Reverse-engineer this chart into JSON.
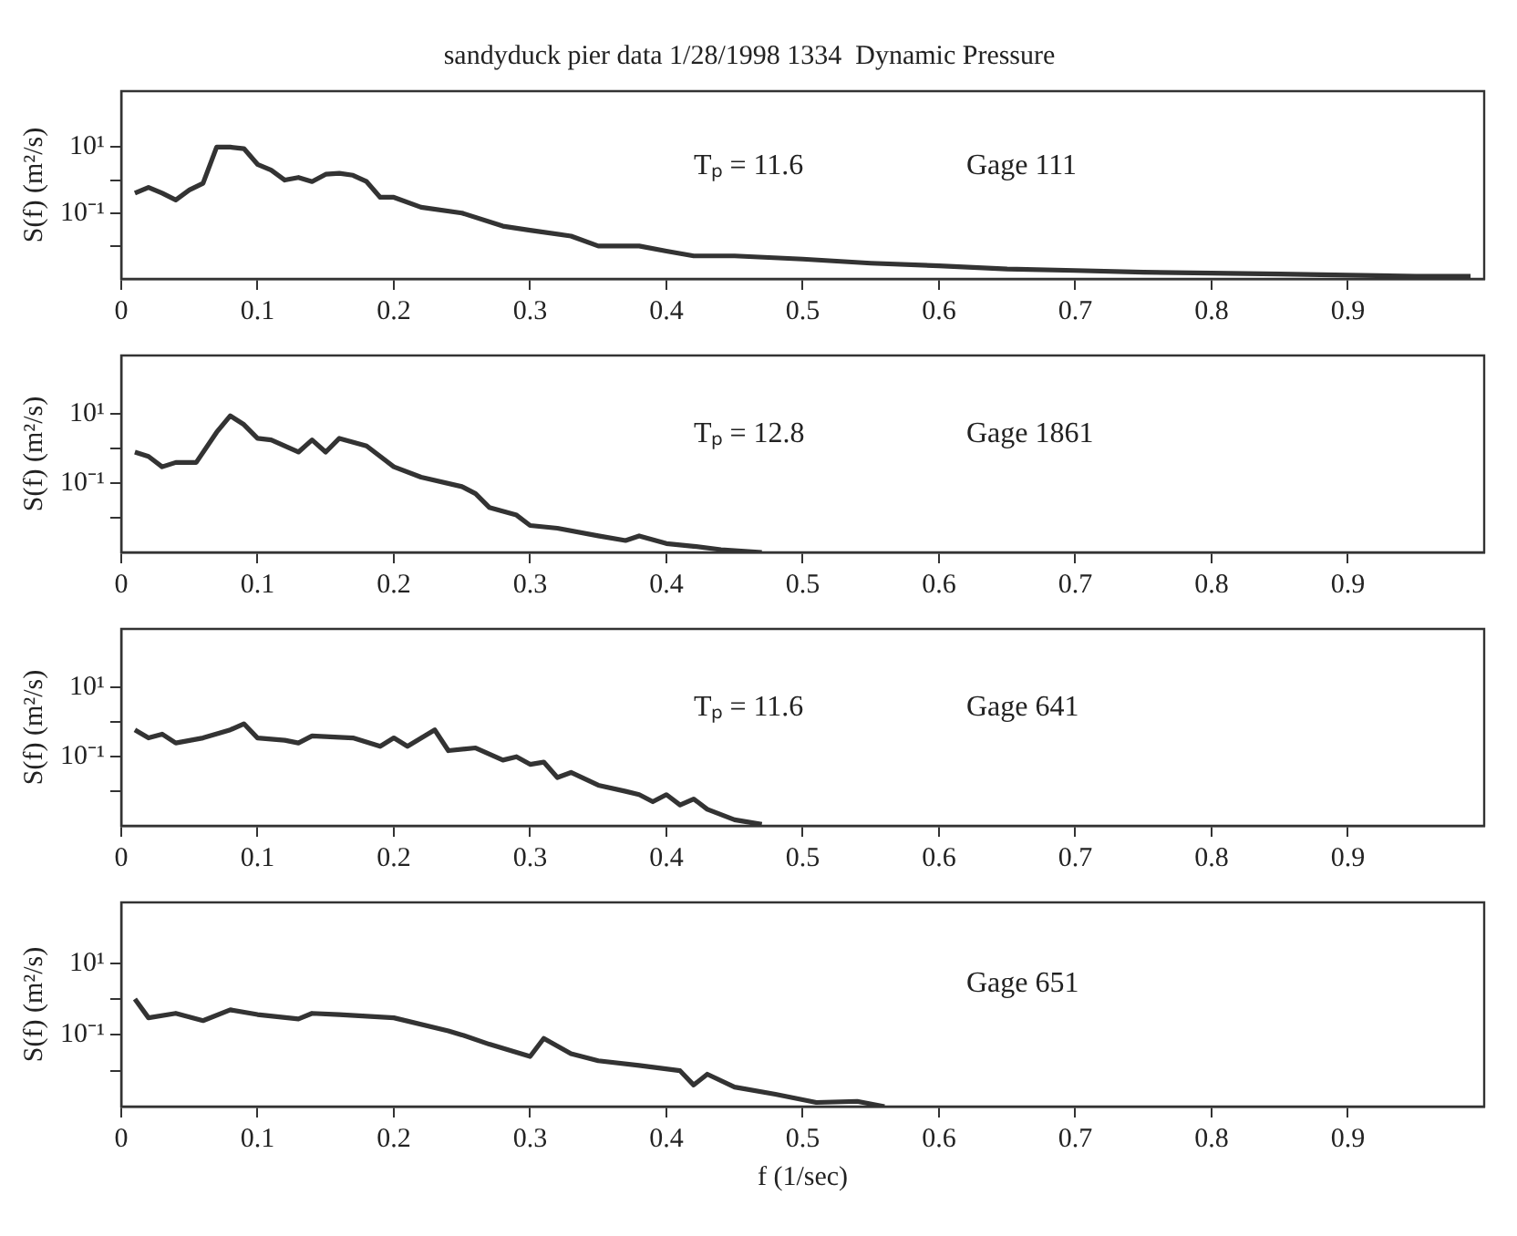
{
  "chart_data": [
    {
      "type": "line",
      "title": "sandyduck pier data 1/28/1998 1334  Dynamic Pressure",
      "ylabel": "S(f) (m²/s)",
      "log": "y",
      "xlim": [
        0,
        1
      ],
      "xticks": [
        0,
        0.1,
        0.2,
        0.3,
        0.4,
        0.5,
        0.6,
        0.7,
        0.8,
        0.9
      ],
      "ylim": [
        0.001,
        500
      ],
      "yticks": [
        {
          "value": 10,
          "label": "10¹"
        },
        {
          "value": 1,
          "label": null
        },
        {
          "value": 0.1,
          "label": "10⁻¹"
        },
        {
          "value": 0.01,
          "label": null
        }
      ],
      "annotations": [
        "Tₚ = 11.6",
        "Gage 111"
      ],
      "legend": false,
      "series": [
        {
          "color": "#333333",
          "x": [
            0.01,
            0.02,
            0.03,
            0.04,
            0.05,
            0.06,
            0.07,
            0.08,
            0.09,
            0.1,
            0.11,
            0.12,
            0.13,
            0.14,
            0.15,
            0.16,
            0.17,
            0.18,
            0.19,
            0.2,
            0.22,
            0.25,
            0.28,
            0.3,
            0.33,
            0.35,
            0.38,
            0.4,
            0.42,
            0.45,
            0.5,
            0.55,
            0.6,
            0.65,
            0.7,
            0.75,
            0.8,
            0.85,
            0.9,
            0.95,
            0.99
          ],
          "values": [
            0.4,
            0.6,
            0.4,
            0.25,
            0.5,
            0.8,
            10,
            10,
            9,
            3,
            2,
            1,
            1.2,
            0.9,
            1.5,
            1.6,
            1.4,
            0.9,
            0.3,
            0.3,
            0.15,
            0.1,
            0.04,
            0.03,
            0.02,
            0.01,
            0.01,
            0.007,
            0.005,
            0.005,
            0.004,
            0.003,
            0.0025,
            0.002,
            0.0018,
            0.0016,
            0.0015,
            0.0014,
            0.0013,
            0.0012,
            0.0012
          ]
        }
      ]
    },
    {
      "type": "line",
      "ylabel": "S(f) (m²/s)",
      "log": "y",
      "xlim": [
        0,
        1
      ],
      "xticks": [
        0,
        0.1,
        0.2,
        0.3,
        0.4,
        0.5,
        0.6,
        0.7,
        0.8,
        0.9
      ],
      "ylim": [
        0.001,
        500
      ],
      "yticks": [
        {
          "value": 10,
          "label": "10¹"
        },
        {
          "value": 1,
          "label": null
        },
        {
          "value": 0.1,
          "label": "10⁻¹"
        },
        {
          "value": 0.01,
          "label": null
        }
      ],
      "annotations": [
        "Tₚ = 12.8",
        "Gage 1861"
      ],
      "legend": false,
      "series": [
        {
          "color": "#333333",
          "x": [
            0.01,
            0.02,
            0.03,
            0.04,
            0.05,
            0.055,
            0.07,
            0.08,
            0.09,
            0.1,
            0.11,
            0.13,
            0.14,
            0.15,
            0.16,
            0.18,
            0.2,
            0.22,
            0.25,
            0.26,
            0.27,
            0.29,
            0.3,
            0.32,
            0.35,
            0.37,
            0.38,
            0.4,
            0.42,
            0.44,
            0.47
          ],
          "values": [
            0.8,
            0.6,
            0.3,
            0.4,
            0.4,
            0.4,
            3,
            9,
            5,
            2,
            1.8,
            0.8,
            1.8,
            0.8,
            2,
            1.2,
            0.3,
            0.15,
            0.08,
            0.05,
            0.02,
            0.012,
            0.006,
            0.005,
            0.003,
            0.0022,
            0.003,
            0.0018,
            0.0015,
            0.0012,
            0.001
          ]
        }
      ]
    },
    {
      "type": "line",
      "ylabel": "S(f) (m²/s)",
      "log": "y",
      "xlim": [
        0,
        1
      ],
      "xticks": [
        0,
        0.1,
        0.2,
        0.3,
        0.4,
        0.5,
        0.6,
        0.7,
        0.8,
        0.9
      ],
      "ylim": [
        0.001,
        500
      ],
      "yticks": [
        {
          "value": 10,
          "label": "10¹"
        },
        {
          "value": 1,
          "label": null
        },
        {
          "value": 0.1,
          "label": "10⁻¹"
        },
        {
          "value": 0.01,
          "label": null
        }
      ],
      "annotations": [
        "Tₚ = 11.6",
        "Gage 641"
      ],
      "legend": false,
      "series": [
        {
          "color": "#333333",
          "x": [
            0.01,
            0.02,
            0.03,
            0.04,
            0.06,
            0.08,
            0.09,
            0.1,
            0.12,
            0.13,
            0.14,
            0.17,
            0.19,
            0.2,
            0.21,
            0.23,
            0.24,
            0.26,
            0.28,
            0.29,
            0.3,
            0.31,
            0.32,
            0.33,
            0.35,
            0.37,
            0.38,
            0.39,
            0.4,
            0.41,
            0.42,
            0.43,
            0.45,
            0.47
          ],
          "values": [
            0.6,
            0.35,
            0.45,
            0.25,
            0.35,
            0.6,
            0.9,
            0.35,
            0.3,
            0.25,
            0.4,
            0.35,
            0.2,
            0.35,
            0.2,
            0.6,
            0.15,
            0.18,
            0.08,
            0.1,
            0.06,
            0.07,
            0.025,
            0.035,
            0.015,
            0.01,
            0.008,
            0.005,
            0.008,
            0.004,
            0.006,
            0.003,
            0.0015,
            0.0011
          ]
        }
      ]
    },
    {
      "type": "line",
      "ylabel": "S(f) (m²/s)",
      "xlabel": "f (1/sec)",
      "log": "y",
      "xlim": [
        0,
        1
      ],
      "xticks": [
        0,
        0.1,
        0.2,
        0.3,
        0.4,
        0.5,
        0.6,
        0.7,
        0.8,
        0.9
      ],
      "ylim": [
        0.001,
        500
      ],
      "yticks": [
        {
          "value": 10,
          "label": "10¹"
        },
        {
          "value": 1,
          "label": null
        },
        {
          "value": 0.1,
          "label": "10⁻¹"
        },
        {
          "value": 0.01,
          "label": null
        }
      ],
      "annotations": [
        "Gage 651"
      ],
      "legend": false,
      "series": [
        {
          "color": "#333333",
          "x": [
            0.01,
            0.02,
            0.04,
            0.06,
            0.08,
            0.1,
            0.13,
            0.14,
            0.16,
            0.2,
            0.24,
            0.25,
            0.27,
            0.3,
            0.31,
            0.33,
            0.35,
            0.38,
            0.41,
            0.42,
            0.43,
            0.45,
            0.48,
            0.51,
            0.54,
            0.56
          ],
          "values": [
            1,
            0.3,
            0.4,
            0.25,
            0.5,
            0.37,
            0.28,
            0.4,
            0.37,
            0.3,
            0.13,
            0.1,
            0.055,
            0.025,
            0.08,
            0.03,
            0.019,
            0.014,
            0.01,
            0.004,
            0.008,
            0.0035,
            0.0022,
            0.0013,
            0.0014,
            0.001
          ]
        }
      ]
    }
  ]
}
